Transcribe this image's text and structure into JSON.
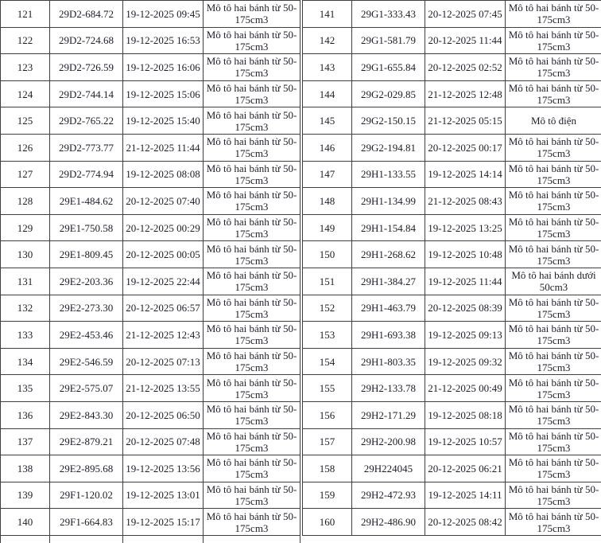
{
  "colors": {
    "text": "#1d1d29",
    "border": "#3f3f3f",
    "background": "#ffffff"
  },
  "table": {
    "columns": [
      "no",
      "plate",
      "datetime",
      "type"
    ]
  },
  "left_table": {
    "rows": [
      {
        "no": "121",
        "plate": "29D2-684.72",
        "datetime": "19-12-2025 09:45",
        "type": "Mô tô hai bánh từ 50-175cm3"
      },
      {
        "no": "122",
        "plate": "29D2-724.68",
        "datetime": "19-12-2025 16:53",
        "type": "Mô tô hai bánh từ 50-175cm3"
      },
      {
        "no": "123",
        "plate": "29D2-726.59",
        "datetime": "19-12-2025 16:06",
        "type": "Mô tô hai bánh từ 50-175cm3"
      },
      {
        "no": "124",
        "plate": "29D2-744.14",
        "datetime": "19-12-2025 15:06",
        "type": "Mô tô hai bánh từ 50-175cm3"
      },
      {
        "no": "125",
        "plate": "29D2-765.22",
        "datetime": "19-12-2025 15:40",
        "type": "Mô tô hai bánh từ 50-175cm3"
      },
      {
        "no": "126",
        "plate": "29D2-773.77",
        "datetime": "21-12-2025 11:44",
        "type": "Mô tô hai bánh từ 50-175cm3"
      },
      {
        "no": "127",
        "plate": "29D2-774.94",
        "datetime": "19-12-2025 08:08",
        "type": "Mô tô hai bánh từ 50-175cm3"
      },
      {
        "no": "128",
        "plate": "29E1-484.62",
        "datetime": "20-12-2025 07:40",
        "type": "Mô tô hai bánh từ 50-175cm3"
      },
      {
        "no": "129",
        "plate": "29E1-750.58",
        "datetime": "20-12-2025 00:29",
        "type": "Mô tô hai bánh từ 50-175cm3"
      },
      {
        "no": "130",
        "plate": "29E1-809.45",
        "datetime": "20-12-2025 00:05",
        "type": "Mô tô hai bánh từ 50-175cm3"
      },
      {
        "no": "131",
        "plate": "29E2-203.36",
        "datetime": "19-12-2025 22:44",
        "type": "Mô tô hai bánh từ 50-175cm3"
      },
      {
        "no": "132",
        "plate": "29E2-273.30",
        "datetime": "20-12-2025 06:57",
        "type": "Mô tô hai bánh từ 50-175cm3"
      },
      {
        "no": "133",
        "plate": "29E2-453.46",
        "datetime": "21-12-2025 12:43",
        "type": "Mô tô hai bánh từ 50-175cm3"
      },
      {
        "no": "134",
        "plate": "29E2-546.59",
        "datetime": "20-12-2025 07:13",
        "type": "Mô tô hai bánh từ 50-175cm3"
      },
      {
        "no": "135",
        "plate": "29E2-575.07",
        "datetime": "21-12-2025 13:55",
        "type": "Mô tô hai bánh từ 50-175cm3"
      },
      {
        "no": "136",
        "plate": "29E2-843.30",
        "datetime": "20-12-2025 06:50",
        "type": "Mô tô hai bánh từ 50-175cm3"
      },
      {
        "no": "137",
        "plate": "29E2-879.21",
        "datetime": "20-12-2025 07:48",
        "type": "Mô tô hai bánh từ 50-175cm3"
      },
      {
        "no": "138",
        "plate": "29E2-895.68",
        "datetime": "19-12-2025 13:56",
        "type": "Mô tô hai bánh từ 50-175cm3"
      },
      {
        "no": "139",
        "plate": "29F1-120.02",
        "datetime": "19-12-2025 13:01",
        "type": "Mô tô hai bánh từ 50-175cm3"
      },
      {
        "no": "140",
        "plate": "29F1-664.83",
        "datetime": "19-12-2025 15:17",
        "type": "Mô tô hai bánh từ 50-175cm3"
      }
    ]
  },
  "right_table": {
    "rows": [
      {
        "no": "141",
        "plate": "29G1-333.43",
        "datetime": "20-12-2025 07:45",
        "type": "Mô tô hai bánh từ 50-175cm3"
      },
      {
        "no": "142",
        "plate": "29G1-581.79",
        "datetime": "20-12-2025 11:44",
        "type": "Mô tô hai bánh từ 50-175cm3"
      },
      {
        "no": "143",
        "plate": "29G1-655.84",
        "datetime": "20-12-2025 02:52",
        "type": "Mô tô hai bánh từ 50-175cm3"
      },
      {
        "no": "144",
        "plate": "29G2-029.85",
        "datetime": "21-12-2025 12:48",
        "type": "Mô tô hai bánh từ 50-175cm3"
      },
      {
        "no": "145",
        "plate": "29G2-150.15",
        "datetime": "21-12-2025 05:15",
        "type": "Mô tô điện"
      },
      {
        "no": "146",
        "plate": "29G2-194.81",
        "datetime": "20-12-2025 00:17",
        "type": "Mô tô hai bánh từ 50-175cm3"
      },
      {
        "no": "147",
        "plate": "29H1-133.55",
        "datetime": "19-12-2025 14:14",
        "type": "Mô tô hai bánh từ 50-175cm3"
      },
      {
        "no": "148",
        "plate": "29H1-134.99",
        "datetime": "21-12-2025 08:43",
        "type": "Mô tô hai bánh từ 50-175cm3"
      },
      {
        "no": "149",
        "plate": "29H1-154.84",
        "datetime": "19-12-2025 13:25",
        "type": "Mô tô hai bánh từ 50-175cm3"
      },
      {
        "no": "150",
        "plate": "29H1-268.62",
        "datetime": "19-12-2025 10:48",
        "type": "Mô tô hai bánh từ 50-175cm3"
      },
      {
        "no": "151",
        "plate": "29H1-384.27",
        "datetime": "19-12-2025 11:44",
        "type": "Mô tô hai bánh dưới 50cm3"
      },
      {
        "no": "152",
        "plate": "29H1-463.79",
        "datetime": "20-12-2025 08:39",
        "type": "Mô tô hai bánh từ 50-175cm3"
      },
      {
        "no": "153",
        "plate": "29H1-693.38",
        "datetime": "19-12-2025 09:13",
        "type": "Mô tô hai bánh từ 50-175cm3"
      },
      {
        "no": "154",
        "plate": "29H1-803.35",
        "datetime": "19-12-2025 09:32",
        "type": "Mô tô hai bánh từ 50-175cm3"
      },
      {
        "no": "155",
        "plate": "29H2-133.78",
        "datetime": "21-12-2025 00:49",
        "type": "Mô tô hai bánh từ 50-175cm3"
      },
      {
        "no": "156",
        "plate": "29H2-171.29",
        "datetime": "19-12-2025 08:18",
        "type": "Mô tô hai bánh từ 50-175cm3"
      },
      {
        "no": "157",
        "plate": "29H2-200.98",
        "datetime": "19-12-2025 10:57",
        "type": "Mô tô hai bánh từ 50-175cm3"
      },
      {
        "no": "158",
        "plate": "29H224045",
        "datetime": "20-12-2025 06:21",
        "type": "Mô tô hai bánh từ 50-175cm3"
      },
      {
        "no": "159",
        "plate": "29H2-472.93",
        "datetime": "19-12-2025 14:11",
        "type": "Mô tô hai bánh từ 50-175cm3"
      },
      {
        "no": "160",
        "plate": "29H2-486.90",
        "datetime": "20-12-2025 08:42",
        "type": "Mô tô hai bánh từ 50-175cm3"
      }
    ]
  }
}
